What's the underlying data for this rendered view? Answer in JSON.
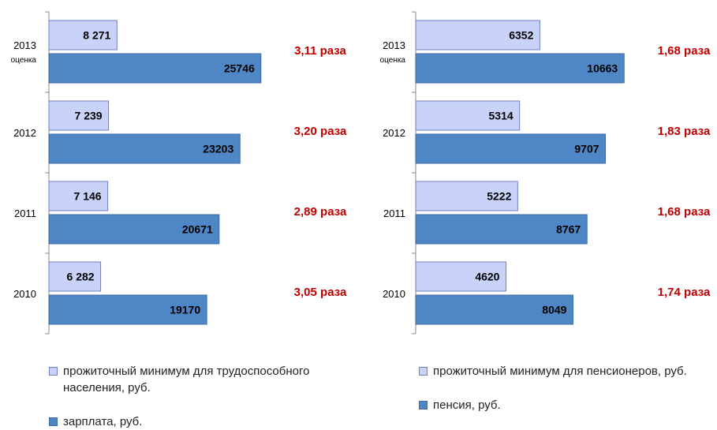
{
  "colors": {
    "light_bar": "#c9d3fa",
    "light_border": "#6f7fc4",
    "dark_bar": "#4f86c6",
    "dark_border": "#3c6aa0",
    "ratio_text": "#c00000"
  },
  "chart_data": [
    {
      "type": "bar",
      "orientation": "horizontal",
      "categories": [
        {
          "label": "2013",
          "sublabel": "оценка"
        },
        {
          "label": "2012",
          "sublabel": ""
        },
        {
          "label": "2011",
          "sublabel": ""
        },
        {
          "label": "2010",
          "sublabel": ""
        }
      ],
      "series": [
        {
          "name": "прожиточный минимум для трудоспособного населения, руб.",
          "values": [
            8271,
            7239,
            7146,
            6282
          ],
          "value_labels": [
            "8 271",
            "7 239",
            "7 146",
            "6 282"
          ]
        },
        {
          "name": "зарплата, руб.",
          "values": [
            25746,
            23203,
            20671,
            19170
          ],
          "value_labels": [
            "25746",
            "23203",
            "20671",
            "19170"
          ]
        }
      ],
      "ratios": [
        "3,11 раза",
        "3,20 раза",
        "2,89 раза",
        "3,05 раза"
      ],
      "xlim": [
        0,
        30000
      ],
      "legend_position": "bottom"
    },
    {
      "type": "bar",
      "orientation": "horizontal",
      "categories": [
        {
          "label": "2013",
          "sublabel": "оценка"
        },
        {
          "label": "2012",
          "sublabel": ""
        },
        {
          "label": "2011",
          "sublabel": ""
        },
        {
          "label": "2010",
          "sublabel": ""
        }
      ],
      "series": [
        {
          "name": "прожиточный минимум для пенсионеров, руб.",
          "values": [
            6352,
            5314,
            5222,
            4620
          ],
          "value_labels": [
            "6352",
            "5314",
            "5222",
            "4620"
          ]
        },
        {
          "name": "пенсия, руб.",
          "values": [
            10663,
            9707,
            8767,
            8049
          ],
          "value_labels": [
            "10663",
            "9707",
            "8767",
            "8049"
          ]
        }
      ],
      "ratios": [
        "1,68 раза",
        "1,83 раза",
        "1,68 раза",
        "1,74 раза"
      ],
      "xlim": [
        0,
        13000
      ],
      "legend_position": "bottom"
    }
  ],
  "legends": {
    "left": {
      "item1": "прожиточный минимум для трудоспособного населения, руб.",
      "item2": "зарплата, руб."
    },
    "right": {
      "item1": "прожиточный минимум для пенсионеров, руб.",
      "item2": "пенсия, руб."
    }
  }
}
